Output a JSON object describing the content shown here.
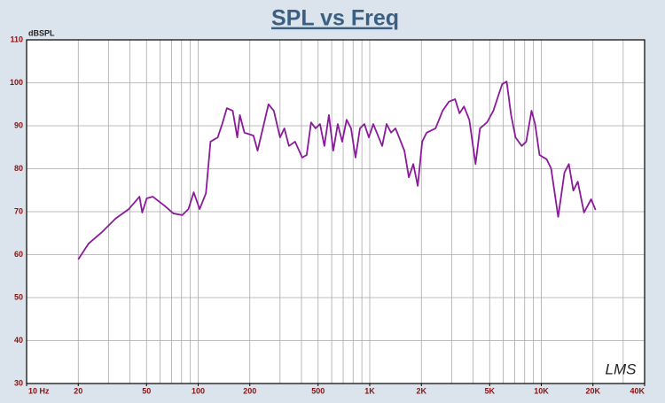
{
  "chart_data": {
    "type": "line",
    "title": "SPL vs Freq",
    "y_label": "dBSPL",
    "watermark": "LMS",
    "log_x": true,
    "grid": true,
    "xlim": [
      10,
      40000
    ],
    "ylim": [
      30,
      110
    ],
    "xticks": [
      {
        "value": 10,
        "label": "10 Hz"
      },
      20,
      50,
      100,
      200,
      500,
      {
        "value": 1000,
        "label": "1K"
      },
      {
        "value": 2000,
        "label": "2K"
      },
      {
        "value": 5000,
        "label": "5K"
      },
      {
        "value": 10000,
        "label": "10K"
      },
      {
        "value": 20000,
        "label": "20K"
      },
      {
        "value": 40000,
        "label": "40K"
      }
    ],
    "xminorticks": [
      20,
      30,
      40,
      50,
      60,
      70,
      80,
      90,
      100,
      200,
      300,
      400,
      500,
      600,
      700,
      800,
      900,
      1000,
      2000,
      3000,
      4000,
      5000,
      6000,
      7000,
      8000,
      9000,
      10000,
      20000,
      30000
    ],
    "yticks": [
      30,
      40,
      50,
      60,
      70,
      80,
      90,
      100,
      110
    ],
    "series": [
      {
        "name": "SPL",
        "color": "#8b1a9b",
        "x": [
          20,
          23,
          27.6,
          33,
          39.4,
          45.5,
          47.2,
          50.1,
          54.4,
          63.6,
          71.6,
          80.7,
          87.7,
          94.2,
          102,
          111,
          118,
          130,
          138,
          147,
          159,
          169,
          175,
          186,
          210,
          222,
          257,
          276,
          300,
          318,
          338,
          367,
          404,
          429,
          455,
          483,
          513,
          544,
          578,
          613,
          651,
          691,
          733,
          778,
          826,
          877,
          931,
          988,
          1049,
          1182,
          1254,
          1331,
          1413,
          1592,
          1690,
          1794,
          1905,
          2022,
          2146,
          2418,
          2660,
          2891,
          3143,
          3337,
          3542,
          3805,
          4137,
          4391,
          4830,
          5252,
          5574,
          5916,
          6281,
          6666,
          7075,
          7691,
          8165,
          8770,
          9198,
          9763,
          10740,
          11400,
          12540,
          13640,
          14470,
          15370,
          16310,
          17740,
          19510,
          20710
        ],
        "values": [
          58.9,
          62.6,
          65.3,
          68.4,
          70.6,
          73.5,
          69.8,
          73.1,
          73.5,
          71.4,
          69.6,
          69.2,
          70.6,
          74.5,
          70.6,
          74.3,
          86.3,
          87.3,
          90.4,
          94.1,
          93.5,
          87.3,
          92.5,
          88.4,
          87.7,
          84.2,
          95.0,
          93.5,
          87.3,
          89.4,
          85.3,
          86.3,
          82.6,
          83.2,
          90.8,
          89.4,
          90.4,
          85.3,
          92.5,
          84.2,
          90.4,
          86.3,
          91.4,
          89.4,
          82.6,
          89.4,
          90.4,
          87.3,
          90.4,
          85.3,
          90.4,
          88.4,
          89.4,
          84.2,
          78.0,
          81.1,
          76.0,
          86.3,
          88.4,
          89.4,
          93.5,
          95.6,
          96.2,
          92.9,
          94.5,
          91.4,
          81.1,
          89.4,
          90.8,
          93.5,
          96.6,
          99.7,
          100.3,
          92.5,
          87.3,
          85.3,
          86.3,
          93.5,
          90.4,
          83.2,
          82.2,
          80.1,
          68.8,
          79.1,
          81.1,
          74.9,
          77.0,
          69.8,
          72.9,
          70.4
        ]
      }
    ]
  }
}
